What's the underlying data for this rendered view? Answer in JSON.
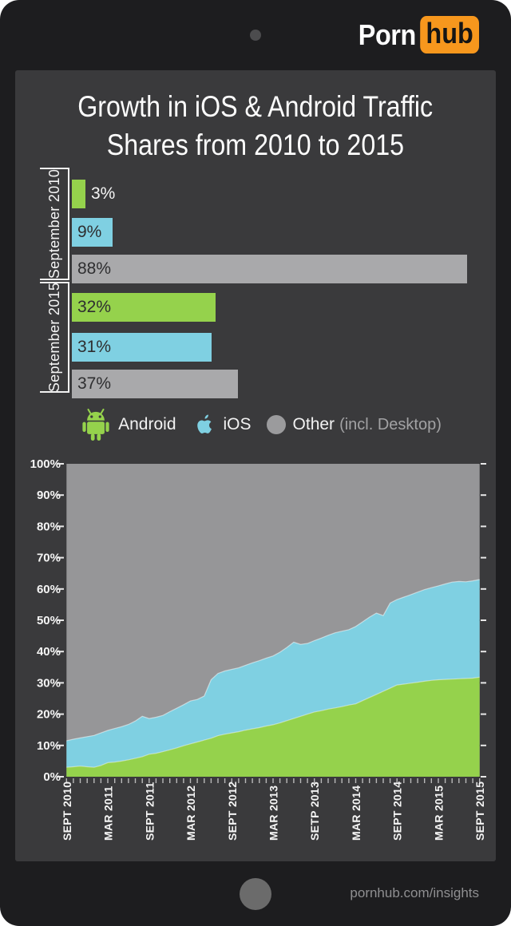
{
  "header": {
    "logo": {
      "part1": "Porn",
      "part2": "hub"
    }
  },
  "title": {
    "lines": [
      "Growth in iOS & Android Traffic",
      "Shares from 2010 to 2015"
    ]
  },
  "bar_chart": {
    "unit": "%",
    "groups": [
      {
        "label": "September 2010",
        "bars": [
          {
            "series": "Android",
            "value": 3,
            "label": "3%",
            "label_inside": false
          },
          {
            "series": "iOS",
            "value": 9,
            "label": "9%",
            "label_inside": true
          },
          {
            "series": "Other",
            "value": 88,
            "label": "88%",
            "label_inside": true
          }
        ]
      },
      {
        "label": "September 2015",
        "bars": [
          {
            "series": "Android",
            "value": 32,
            "label": "32%",
            "label_inside": true
          },
          {
            "series": "iOS",
            "value": 31,
            "label": "31%",
            "label_inside": true
          },
          {
            "series": "Other",
            "value": 37,
            "label": "37%",
            "label_inside": true
          }
        ]
      }
    ]
  },
  "legend": {
    "items": [
      {
        "icon": "android-robot-icon",
        "label": "Android",
        "suffix": ""
      },
      {
        "icon": "apple-icon",
        "label": "iOS",
        "suffix": ""
      },
      {
        "icon": "gray-dot-icon",
        "label": "Other",
        "suffix": "(incl. Desktop)"
      }
    ]
  },
  "chart_data": {
    "type": "area",
    "stacked": true,
    "x_unit": "month",
    "x_range": [
      "Sept 2010",
      "Sept 2015"
    ],
    "x_tick_labels": [
      "SEPT 2010",
      "MAR 2011",
      "SEPT 2011",
      "MAR 2012",
      "SEPT 2012",
      "MAR 2013",
      "SETP 2013",
      "MAR 2014",
      "SEPT 2014",
      "MAR 2015",
      "SEPT 2015"
    ],
    "y_tick_labels": [
      "0%",
      "10%",
      "20%",
      "30%",
      "40%",
      "50%",
      "60%",
      "70%",
      "80%",
      "90%",
      "100%"
    ],
    "ylim": [
      0,
      100
    ],
    "grid": false,
    "legend_position": "above",
    "series": [
      {
        "name": "Android",
        "color": "#95d24c",
        "values": [
          3.0,
          3.2,
          3.4,
          3.2,
          3.0,
          3.6,
          4.5,
          4.7,
          5.0,
          5.4,
          5.9,
          6.4,
          7.2,
          7.5,
          8.0,
          8.6,
          9.2,
          9.9,
          10.5,
          11.1,
          11.7,
          12.3,
          13.1,
          13.6,
          14.0,
          14.4,
          14.9,
          15.3,
          15.7,
          16.2,
          16.6,
          17.2,
          17.9,
          18.6,
          19.3,
          20.0,
          20.7,
          21.1,
          21.6,
          22.0,
          22.4,
          22.9,
          23.3,
          24.3,
          25.3,
          26.3,
          27.3,
          28.3,
          29.3,
          29.6,
          29.9,
          30.2,
          30.5,
          30.8,
          31.0,
          31.1,
          31.2,
          31.3,
          31.4,
          31.5,
          31.8
        ]
      },
      {
        "name": "iOS",
        "color": "#7fd0e2",
        "values": [
          8.5,
          8.8,
          9.0,
          9.6,
          10.2,
          10.4,
          10.3,
          10.7,
          11.0,
          11.3,
          11.9,
          12.9,
          11.4,
          11.5,
          11.6,
          12.2,
          12.7,
          13.1,
          13.7,
          13.6,
          14.1,
          18.7,
          19.9,
          20.2,
          20.3,
          20.4,
          20.7,
          21.1,
          21.4,
          21.7,
          22.0,
          22.6,
          23.4,
          24.4,
          23.0,
          22.6,
          22.8,
          23.2,
          23.6,
          24.0,
          24.1,
          24.1,
          24.7,
          25.2,
          25.7,
          26.0,
          24.2,
          27.2,
          27.3,
          27.8,
          28.3,
          28.8,
          29.3,
          29.6,
          30.0,
          30.5,
          31.0,
          31.1,
          30.9,
          31.1,
          31.2
        ]
      },
      {
        "name": "Other (incl. Desktop)",
        "color": "#969698",
        "fill_rule": "remainder_to_100"
      }
    ]
  },
  "colors": {
    "android_green": "#95d24c",
    "ios_blue": "#7fd0e2",
    "other_gray_area": "#969698",
    "other_gray_bar": "#a9a9ab",
    "accent_orange": "#f7971d",
    "bar_label_dark": "#2e2e30"
  },
  "footer": {
    "url": "pornhub.com/insights"
  }
}
